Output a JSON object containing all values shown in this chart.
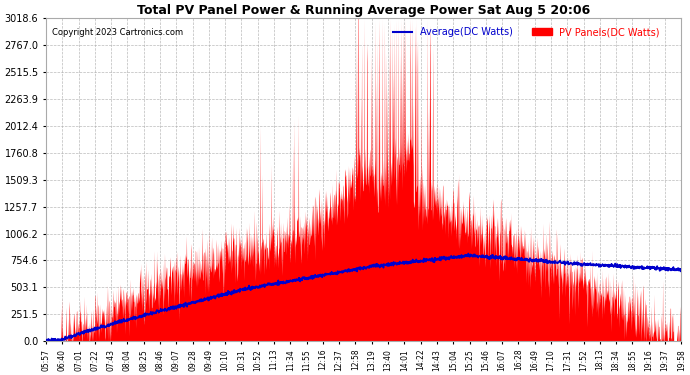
{
  "title": "Total PV Panel Power & Running Average Power Sat Aug 5 20:06",
  "copyright": "Copyright 2023 Cartronics.com",
  "legend_avg": "Average(DC Watts)",
  "legend_pv": "PV Panels(DC Watts)",
  "bg_color": "#ffffff",
  "plot_bg_color": "#ffffff",
  "grid_color": "#aaaaaa",
  "title_color": "#000000",
  "copyright_color": "#000000",
  "avg_color": "#0000cc",
  "pv_color": "#ff0000",
  "ymin": 0.0,
  "ymax": 3018.6,
  "yticks": [
    0.0,
    251.5,
    503.1,
    754.6,
    1006.2,
    1257.7,
    1509.3,
    1760.8,
    2012.4,
    2263.9,
    2515.5,
    2767.0,
    3018.6
  ],
  "xtick_labels": [
    "05:57",
    "06:40",
    "07:01",
    "07:22",
    "07:43",
    "08:04",
    "08:25",
    "08:46",
    "09:07",
    "09:28",
    "09:49",
    "10:10",
    "10:31",
    "10:52",
    "11:13",
    "11:34",
    "11:55",
    "12:16",
    "12:37",
    "12:58",
    "13:19",
    "13:40",
    "14:01",
    "14:22",
    "14:43",
    "15:04",
    "15:25",
    "15:46",
    "16:07",
    "16:28",
    "16:49",
    "17:10",
    "17:31",
    "17:52",
    "18:13",
    "18:34",
    "18:55",
    "19:16",
    "19:37",
    "19:58"
  ]
}
